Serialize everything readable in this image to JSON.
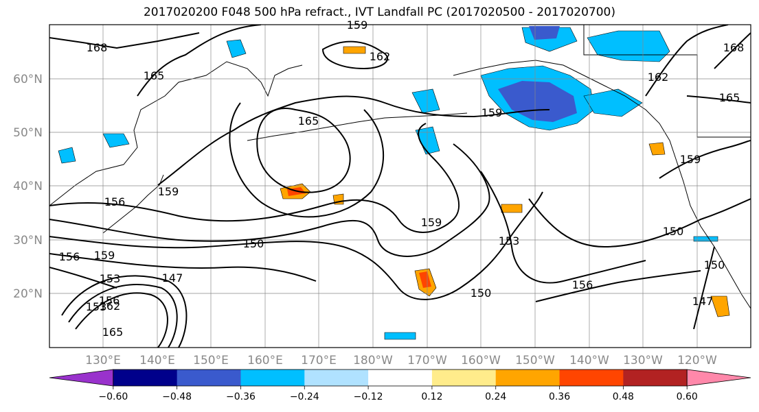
{
  "title": "2017020200 F048 500 hPa refract., IVT Landfall PC (2017020500 - 2017020700)",
  "map": {
    "lat_labels": [
      "60°N",
      "50°N",
      "40°N",
      "30°N",
      "20°N"
    ],
    "lon_labels": [
      "130°E",
      "140°E",
      "150°E",
      "160°E",
      "170°E",
      "180°W",
      "170°W",
      "160°W",
      "150°W",
      "140°W",
      "130°W",
      "120°W"
    ],
    "contour_labels": [
      {
        "t": "168"
      },
      {
        "t": "165"
      },
      {
        "t": "159"
      },
      {
        "t": "162"
      },
      {
        "t": "165"
      },
      {
        "t": "159"
      },
      {
        "t": "168"
      },
      {
        "t": "162"
      },
      {
        "t": "165"
      },
      {
        "t": "159"
      },
      {
        "t": "159"
      },
      {
        "t": "156"
      },
      {
        "t": "159"
      },
      {
        "t": "150"
      },
      {
        "t": "153"
      },
      {
        "t": "150"
      },
      {
        "t": "156"
      },
      {
        "t": "147"
      },
      {
        "t": "156"
      },
      {
        "t": "159"
      },
      {
        "t": "153"
      },
      {
        "t": "150"
      },
      {
        "t": "156"
      },
      {
        "t": "150"
      },
      {
        "t": "147"
      },
      {
        "t": "162"
      },
      {
        "t": "165"
      },
      {
        "t": "153"
      }
    ]
  },
  "colorbar": {
    "colors": [
      "#9932CC",
      "#00008B",
      "#3A5ACD",
      "#00BFFF",
      "#B0E2FF",
      "#FFFFFF",
      "#FFEC8B",
      "#FFA500",
      "#FF4500",
      "#B22222",
      "#FF88AA"
    ],
    "tick_labels": [
      "−0.60",
      "−0.48",
      "−0.36",
      "−0.24",
      "−0.12",
      "0.12",
      "0.24",
      "0.36",
      "0.48",
      "0.60"
    ]
  }
}
